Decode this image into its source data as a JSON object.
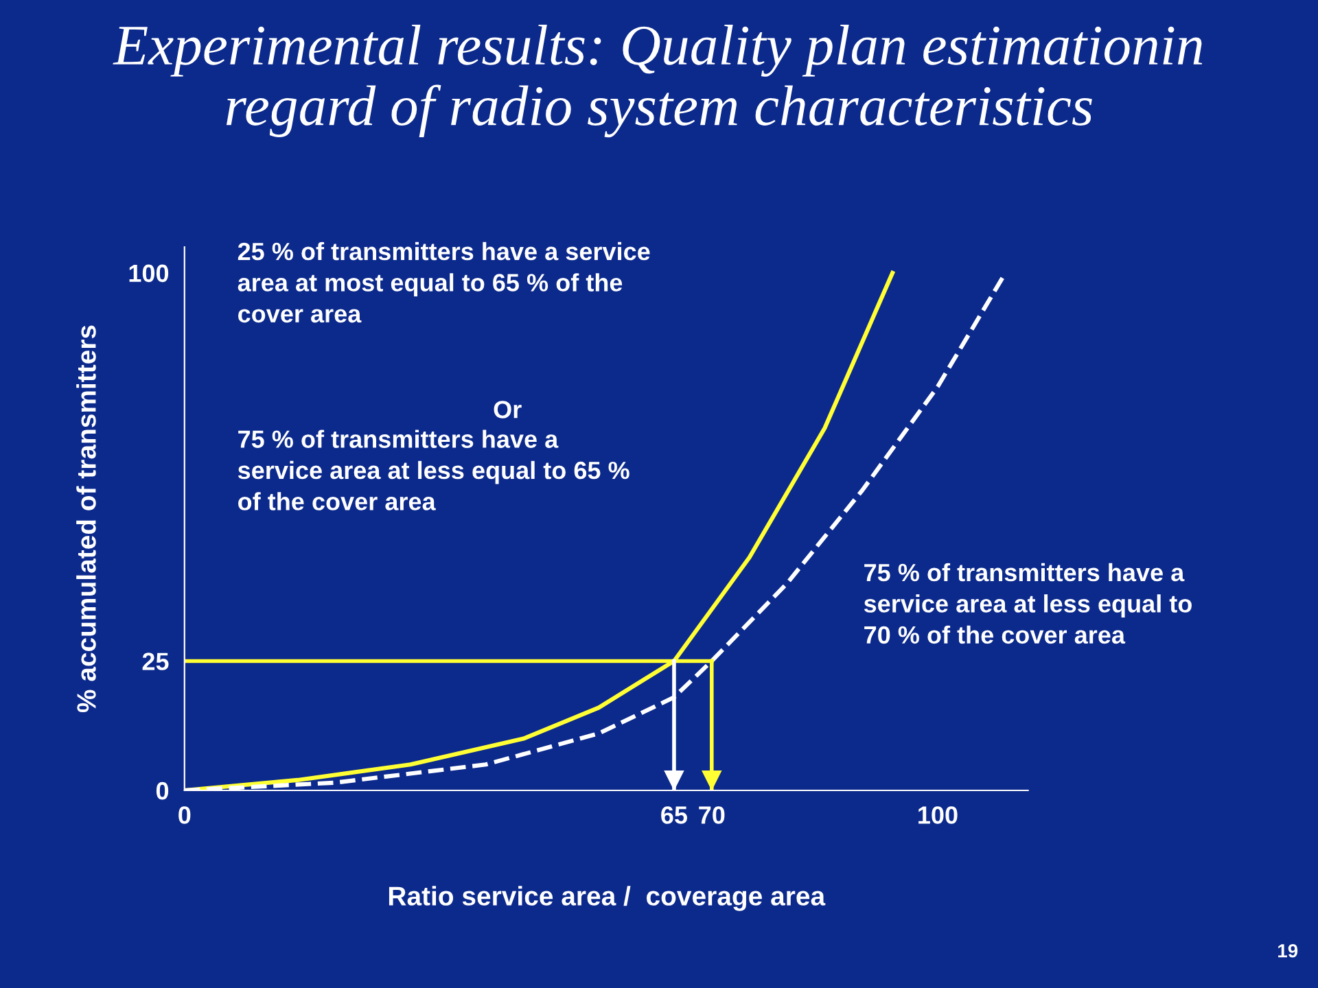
{
  "chart_data": {
    "type": "line",
    "title": "Experimental results: Quality plan estimationin\nregard of radio system characteristics",
    "xlabel": "Ratio service area /  coverage area",
    "ylabel": "% accumulated of transmitters",
    "xlim": [
      0,
      112
    ],
    "ylim": [
      0,
      105
    ],
    "xticks": [
      0,
      65,
      70,
      100
    ],
    "yticks": [
      0,
      25,
      100
    ],
    "grid": false,
    "legend": false,
    "marker": "none",
    "series": [
      {
        "color": "#ffff33",
        "line_style": "solid",
        "x": [
          0,
          15,
          30,
          45,
          55,
          65,
          75,
          85,
          94
        ],
        "values": [
          0,
          2,
          5,
          10,
          16,
          25,
          45,
          70,
          100
        ]
      },
      {
        "color": "#ffffff",
        "line_style": "dashed",
        "x": [
          0,
          20,
          40,
          55,
          65,
          70,
          80,
          90,
          100,
          109
        ],
        "values": [
          0,
          1.5,
          5,
          11,
          18,
          25,
          40,
          58,
          78,
          100
        ]
      }
    ],
    "ref_lines": [
      {
        "axis": "y",
        "value": 25,
        "color": "#ffff33"
      },
      {
        "axis": "x",
        "value": 65,
        "color": "#ffffff"
      },
      {
        "axis": "x",
        "value": 70,
        "color": "#ffff33"
      }
    ],
    "annotations": [
      "25 % of transmitters have a service\narea at most equal to 65 % of the\ncover area",
      "Or",
      "75 % of transmitters have a\nservice area at less equal to 65 %\nof the cover area",
      "75 % of transmitters have a\nservice area at less equal to\n70 % of the cover area",
      "19"
    ]
  }
}
